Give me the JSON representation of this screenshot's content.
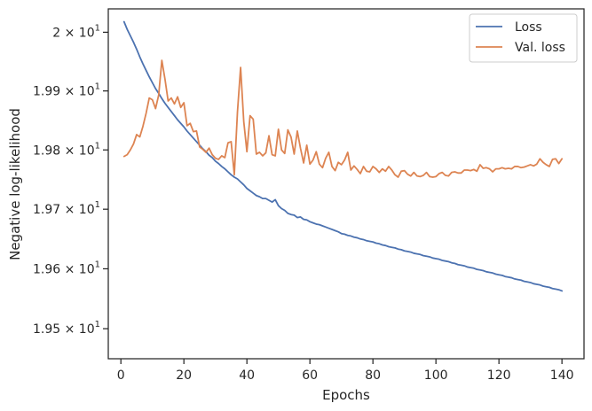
{
  "chart_data": {
    "type": "line",
    "xlabel": "Epochs",
    "ylabel": "Negative log-likelihood",
    "xlim": [
      -4,
      147
    ],
    "ylim": [
      19.45,
      20.04
    ],
    "y_scale": "log",
    "grid": false,
    "legend_position": "top-right",
    "xticks": [
      0,
      20,
      40,
      60,
      80,
      100,
      120,
      140
    ],
    "xtick_labels": [
      "0",
      "20",
      "40",
      "60",
      "80",
      "100",
      "120",
      "140"
    ],
    "yticks": [
      19.5,
      19.6,
      19.7,
      19.8,
      19.9,
      20.0
    ],
    "ytick_labels": [
      {
        "mantissa": "1.95",
        "base": "10",
        "exp": "1"
      },
      {
        "mantissa": "1.96",
        "base": "10",
        "exp": "1"
      },
      {
        "mantissa": "1.97",
        "base": "10",
        "exp": "1"
      },
      {
        "mantissa": "1.98",
        "base": "10",
        "exp": "1"
      },
      {
        "mantissa": "1.99",
        "base": "10",
        "exp": "1"
      },
      {
        "mantissa": "2",
        "base": "10",
        "exp": "1"
      }
    ],
    "series": [
      {
        "name": "Loss",
        "color": "#4c72b0",
        "x_start": 1,
        "values": [
          20.018,
          20.005,
          19.994,
          19.983,
          19.971,
          19.958,
          19.946,
          19.935,
          19.924,
          19.914,
          19.904,
          19.896,
          19.887,
          19.879,
          19.872,
          19.865,
          19.858,
          19.851,
          19.845,
          19.839,
          19.832,
          19.826,
          19.82,
          19.814,
          19.808,
          19.802,
          19.797,
          19.791,
          19.787,
          19.781,
          19.777,
          19.772,
          19.768,
          19.763,
          19.758,
          19.754,
          19.751,
          19.746,
          19.741,
          19.735,
          19.731,
          19.727,
          19.723,
          19.721,
          19.718,
          19.718,
          19.715,
          19.712,
          19.716,
          19.706,
          19.701,
          19.698,
          19.693,
          19.691,
          19.69,
          19.686,
          19.687,
          19.683,
          19.682,
          19.679,
          19.677,
          19.675,
          19.674,
          19.672,
          19.67,
          19.668,
          19.666,
          19.664,
          19.662,
          19.659,
          19.658,
          19.656,
          19.655,
          19.653,
          19.652,
          19.65,
          19.649,
          19.647,
          19.646,
          19.645,
          19.643,
          19.642,
          19.64,
          19.639,
          19.637,
          19.636,
          19.635,
          19.633,
          19.632,
          19.63,
          19.629,
          19.628,
          19.626,
          19.625,
          19.624,
          19.622,
          19.621,
          19.62,
          19.618,
          19.617,
          19.616,
          19.614,
          19.613,
          19.612,
          19.61,
          19.609,
          19.607,
          19.606,
          19.605,
          19.603,
          19.602,
          19.601,
          19.599,
          19.598,
          19.597,
          19.595,
          19.594,
          19.593,
          19.591,
          19.59,
          19.589,
          19.587,
          19.586,
          19.585,
          19.583,
          19.582,
          19.581,
          19.579,
          19.578,
          19.577,
          19.575,
          19.574,
          19.573,
          19.571,
          19.57,
          19.569,
          19.567,
          19.566,
          19.565,
          19.563
        ]
      },
      {
        "name": "Val. loss",
        "color": "#dd8452",
        "x_start": 1,
        "values": [
          19.789,
          19.792,
          19.8,
          19.81,
          19.826,
          19.822,
          19.84,
          19.862,
          19.888,
          19.885,
          19.87,
          19.893,
          19.952,
          19.92,
          19.883,
          19.888,
          19.878,
          19.89,
          19.872,
          19.88,
          19.841,
          19.845,
          19.831,
          19.832,
          19.805,
          19.801,
          19.796,
          19.803,
          19.792,
          19.786,
          19.784,
          19.79,
          19.787,
          19.812,
          19.814,
          19.758,
          19.864,
          19.94,
          19.848,
          19.797,
          19.858,
          19.852,
          19.793,
          19.796,
          19.79,
          19.795,
          19.824,
          19.792,
          19.79,
          19.835,
          19.8,
          19.794,
          19.834,
          19.822,
          19.793,
          19.832,
          19.803,
          19.778,
          19.808,
          19.776,
          19.783,
          19.797,
          19.776,
          19.77,
          19.786,
          19.796,
          19.772,
          19.765,
          19.779,
          19.775,
          19.783,
          19.796,
          19.766,
          19.773,
          19.767,
          19.76,
          19.772,
          19.764,
          19.763,
          19.772,
          19.768,
          19.762,
          19.768,
          19.764,
          19.772,
          19.766,
          19.758,
          19.754,
          19.764,
          19.765,
          19.759,
          19.756,
          19.762,
          19.756,
          19.755,
          19.757,
          19.762,
          19.755,
          19.754,
          19.755,
          19.76,
          19.762,
          19.757,
          19.756,
          19.762,
          19.763,
          19.761,
          19.761,
          19.766,
          19.766,
          19.765,
          19.767,
          19.764,
          19.775,
          19.769,
          19.77,
          19.768,
          19.763,
          19.768,
          19.768,
          19.77,
          19.768,
          19.769,
          19.768,
          19.772,
          19.772,
          19.77,
          19.771,
          19.773,
          19.775,
          19.773,
          19.776,
          19.785,
          19.779,
          19.775,
          19.772,
          19.784,
          19.785,
          19.777,
          19.785
        ]
      }
    ]
  }
}
